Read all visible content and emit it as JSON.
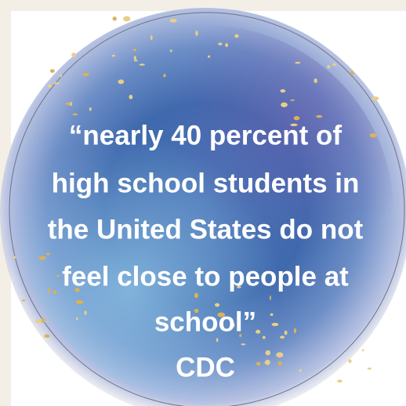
{
  "quote": {
    "lines": [
      "“nearly 40 percent of",
      "high school students in",
      "the United States do not",
      "feel close to people at",
      "school”"
    ],
    "attribution": "CDC"
  }
}
